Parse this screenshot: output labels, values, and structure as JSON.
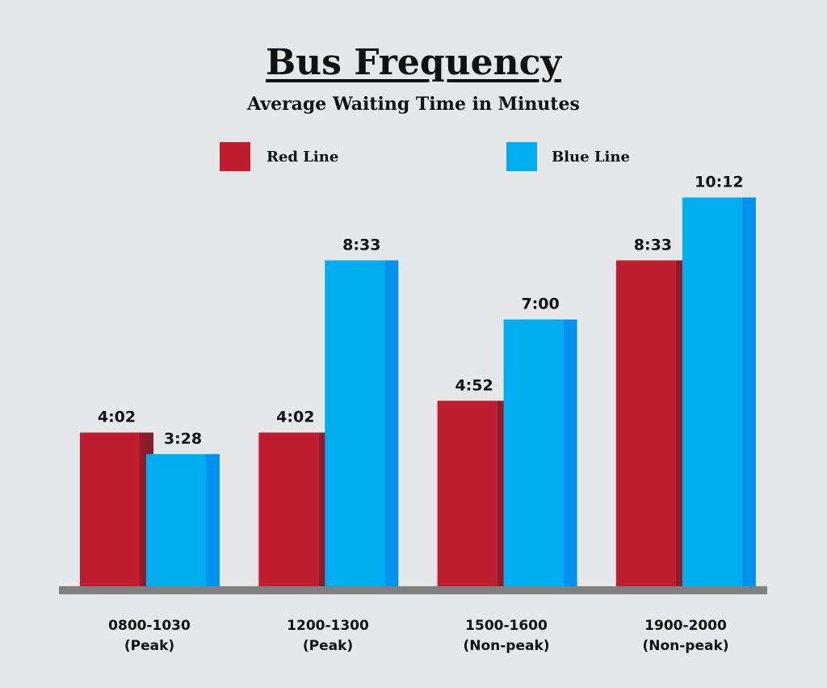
{
  "chart_data": {
    "type": "bar",
    "title": "Bus Frequency",
    "subtitle": "Average Waiting Time in Minutes",
    "categories": [
      [
        "0800-1030",
        "(Peak)"
      ],
      [
        "1200-1300",
        "(Peak)"
      ],
      [
        "1500-1600",
        "(Non-peak)"
      ],
      [
        "1900-2000",
        "(Non-peak)"
      ]
    ],
    "series": [
      {
        "name": "Red Line",
        "values": [
          4.033,
          4.033,
          4.867,
          8.55
        ],
        "labels": [
          "4:02",
          "4:02",
          "4:52",
          "8:33"
        ],
        "color": "#be1e2d",
        "shade": "#8b1c2c"
      },
      {
        "name": "Blue Line",
        "values": [
          3.467,
          8.55,
          7.0,
          10.2
        ],
        "labels": [
          "3:28",
          "8:33",
          "7:00",
          "10:12"
        ],
        "color": "#00aeef",
        "shade": "#0093ee"
      }
    ],
    "legend": "top",
    "grid": false,
    "xlabel": "",
    "ylabel": "",
    "axis_color": "#808080"
  }
}
